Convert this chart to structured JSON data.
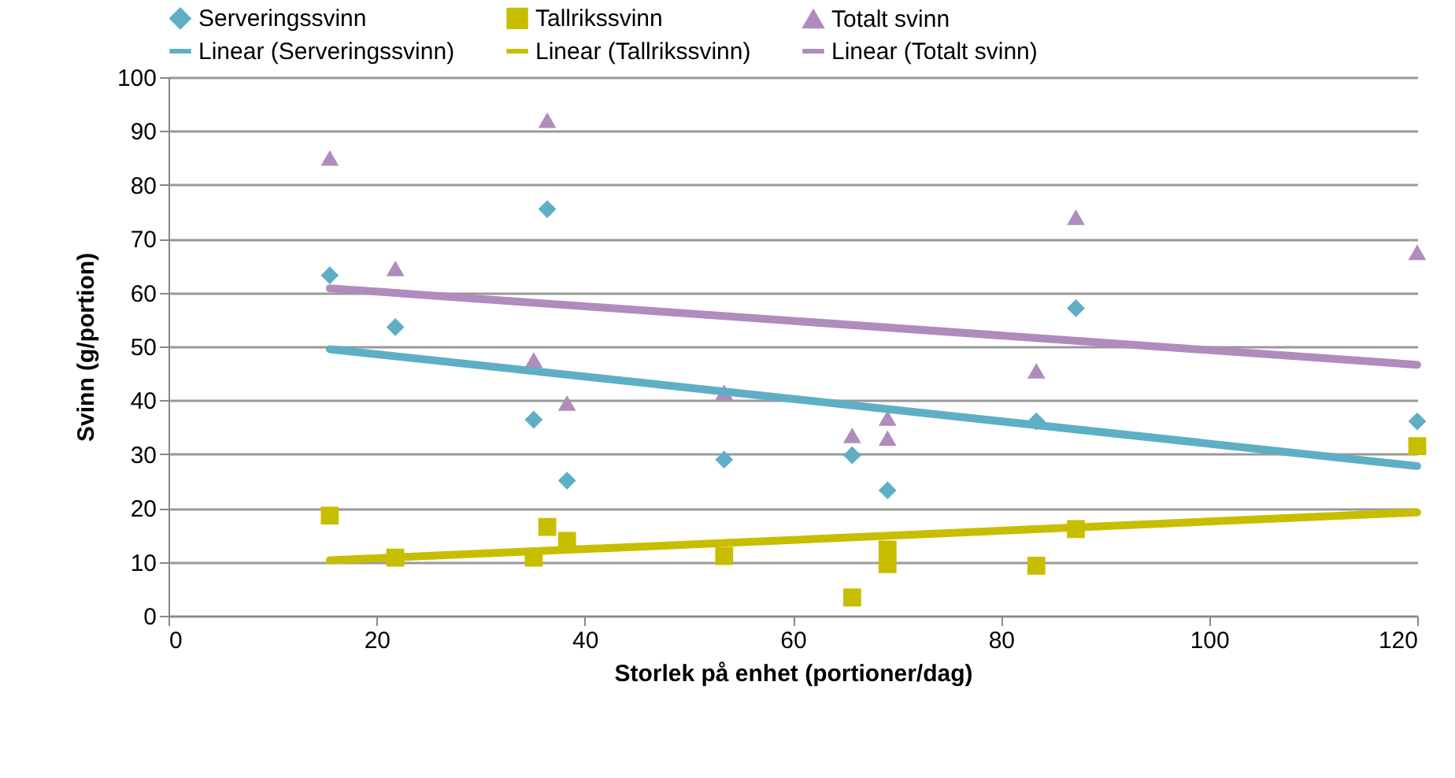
{
  "chart_data": {
    "type": "scatter",
    "xlabel": "Storlek på enhet (portioner/dag)",
    "ylabel": "Svinn (g/portion)",
    "xlim": [
      0,
      120
    ],
    "xticks": [
      0,
      20,
      40,
      60,
      80,
      100,
      120
    ],
    "ylim": [
      0,
      100
    ],
    "yticks": [
      0,
      10,
      20,
      30,
      40,
      50,
      60,
      70,
      80,
      90,
      100
    ],
    "grid": "y",
    "legend": "top",
    "series": [
      {
        "name": "Serveringssvinn",
        "marker": "diamond",
        "color": "#5eafc6",
        "x": [
          15.5,
          21.8,
          36.4,
          35.1,
          38.3,
          53.4,
          65.7,
          69.1,
          83.4,
          87.2,
          120
        ],
        "values": [
          63.2,
          53.6,
          75.5,
          36.4,
          25.1,
          29,
          29.8,
          23.3,
          36.1,
          57.1,
          36.1
        ]
      },
      {
        "name": "Tallrikssvinn",
        "marker": "square",
        "color": "#c8be00",
        "x": [
          15.5,
          21.8,
          35.1,
          36.4,
          38.3,
          53.4,
          65.7,
          69.1,
          69.1,
          83.4,
          87.2,
          120
        ],
        "values": [
          18.6,
          10.8,
          10.8,
          16.5,
          13.9,
          11.1,
          3.4,
          9.6,
          12.3,
          9.3,
          16.1,
          31.5
        ]
      },
      {
        "name": "Totalt svinn",
        "marker": "triangle",
        "color": "#b08cbd",
        "x": [
          15.5,
          21.8,
          36.4,
          35.1,
          38.3,
          53.4,
          65.7,
          69.1,
          69.1,
          83.4,
          87.2,
          120
        ],
        "values": [
          85,
          64.5,
          92,
          47.5,
          39.5,
          41.5,
          33.5,
          36.7,
          33,
          45.5,
          74,
          67.5
        ]
      },
      {
        "name": "Linear (Serveringssvinn)",
        "type": "line",
        "line_style": "solid",
        "color": "#5eafc6",
        "x": [
          15.5,
          120
        ],
        "values": [
          49.5,
          27.8
        ]
      },
      {
        "name": "Linear (Tallrikssvinn)",
        "type": "line",
        "line_style": "solid",
        "color": "#c8be00",
        "x": [
          15.5,
          120
        ],
        "values": [
          10.3,
          19.2
        ]
      },
      {
        "name": "Linear (Totalt svinn)",
        "type": "line",
        "line_style": "solid",
        "color": "#b08cbd",
        "x": [
          15.5,
          120
        ],
        "values": [
          60.8,
          46.6
        ]
      }
    ]
  }
}
